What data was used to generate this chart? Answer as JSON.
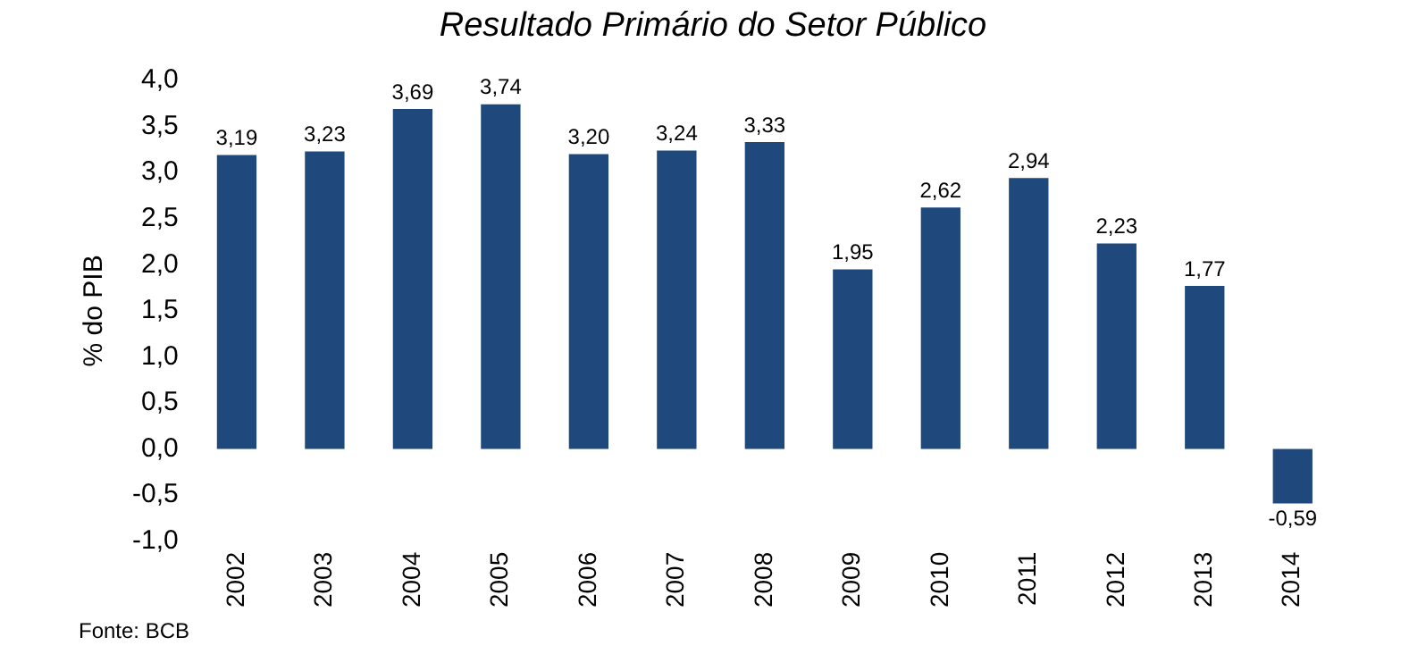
{
  "chart_data": {
    "type": "bar",
    "title": "Resultado Primário do Setor Público",
    "ylabel": "% do PIB",
    "categories": [
      "2002",
      "2003",
      "2004",
      "2005",
      "2006",
      "2007",
      "2008",
      "2009",
      "2010",
      "2011",
      "2012",
      "2013",
      "2014"
    ],
    "values": [
      3.19,
      3.23,
      3.69,
      3.74,
      3.2,
      3.24,
      3.33,
      1.95,
      2.62,
      2.94,
      2.23,
      1.77,
      -0.59
    ],
    "value_labels": [
      "3,19",
      "3,23",
      "3,69",
      "3,74",
      "3,20",
      "3,24",
      "3,33",
      "1,95",
      "2,62",
      "2,94",
      "2,23",
      "1,77",
      "-0,59"
    ],
    "color": "#1f497d",
    "ylim": [
      -1,
      4
    ],
    "yticks": [
      {
        "value": -1,
        "label": "-1,0"
      },
      {
        "value": -0.5,
        "label": "-0,5"
      },
      {
        "value": 0,
        "label": "0,0"
      },
      {
        "value": 0.5,
        "label": "0,5"
      },
      {
        "value": 1,
        "label": "1,0"
      },
      {
        "value": 1.5,
        "label": "1,5"
      },
      {
        "value": 2,
        "label": "2,0"
      },
      {
        "value": 2.5,
        "label": "2,5"
      },
      {
        "value": 3,
        "label": "3,0"
      },
      {
        "value": 3.5,
        "label": "3,5"
      },
      {
        "value": 4,
        "label": "4,0"
      }
    ],
    "grid": false,
    "legend": false,
    "annotations": [
      "Fonte: BCB"
    ]
  }
}
